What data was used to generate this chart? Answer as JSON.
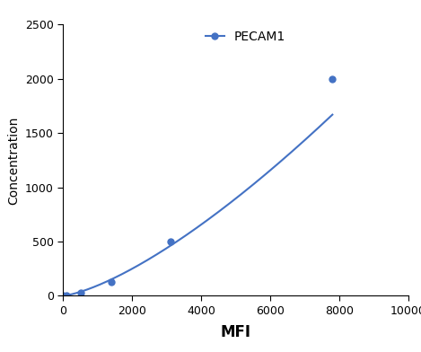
{
  "x": [
    0,
    100,
    500,
    1400,
    3100,
    7800
  ],
  "y": [
    0,
    5,
    25,
    125,
    500,
    2000
  ],
  "line_color": "#4472C4",
  "marker_color": "#4472C4",
  "marker_style": "o",
  "marker_size": 5,
  "line_width": 1.5,
  "xlabel": "MFI",
  "ylabel": "Concentration",
  "xlim": [
    0,
    10000
  ],
  "ylim": [
    0,
    2500
  ],
  "xticks": [
    0,
    2000,
    4000,
    6000,
    8000,
    10000
  ],
  "yticks": [
    0,
    500,
    1000,
    1500,
    2000,
    2500
  ],
  "legend_label": "PECAM1",
  "xlabel_fontsize": 12,
  "ylabel_fontsize": 10,
  "tick_fontsize": 9,
  "legend_fontsize": 10,
  "background_color": "#ffffff"
}
